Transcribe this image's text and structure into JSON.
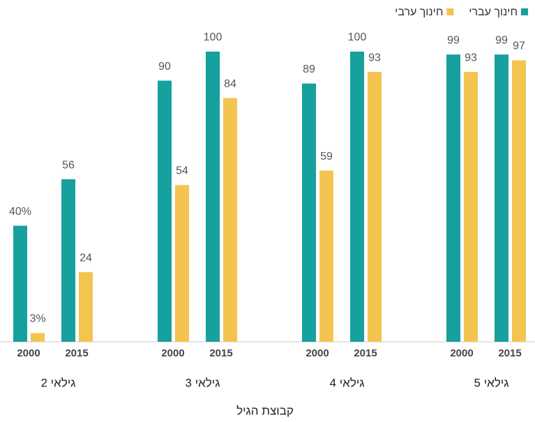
{
  "chart_data": {
    "type": "bar",
    "x_label": "קבוצת הגיל",
    "categories": [
      "2000",
      "2015",
      "2000",
      "2015",
      "2000",
      "2015",
      "2000",
      "2015"
    ],
    "groups": [
      "גילאי 2",
      "גילאי 3",
      "גילאי 4",
      "גילאי 5"
    ],
    "series": [
      {
        "name": "חינוך עברי",
        "color": "#16a09e",
        "values": [
          40,
          56,
          90,
          100,
          89,
          100,
          99,
          99
        ],
        "value_labels": [
          "40%",
          "56",
          "90",
          "100",
          "89",
          "100",
          "99",
          "99"
        ]
      },
      {
        "name": "חינוך ערבי",
        "color": "#f3c44f",
        "values": [
          3,
          24,
          54,
          84,
          59,
          93,
          93,
          97
        ],
        "value_labels": [
          "3%",
          "24",
          "54",
          "84",
          "59",
          "93",
          "93",
          "97"
        ]
      }
    ],
    "ylim": [
      0,
      100
    ],
    "legend": "top-right"
  }
}
